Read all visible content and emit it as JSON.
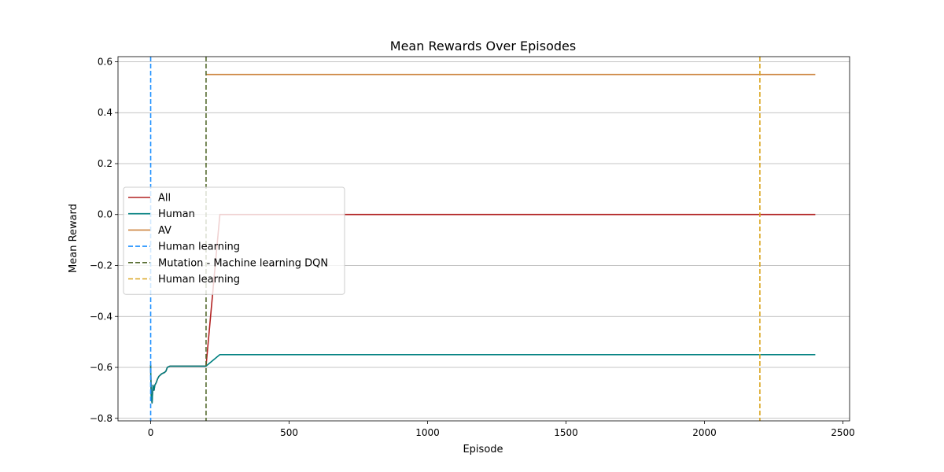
{
  "chart_data": {
    "type": "line",
    "title": "Mean Rewards Over Episodes",
    "xlabel": "Episode",
    "ylabel": "Mean Reward",
    "xlim": [
      -118,
      2524
    ],
    "ylim": [
      -0.81,
      0.62
    ],
    "xticks": [
      0,
      500,
      1000,
      1500,
      2000,
      2500
    ],
    "yticks": [
      -0.8,
      -0.6,
      -0.4,
      -0.2,
      0.0,
      0.2,
      0.4,
      0.6
    ],
    "xtick_labels": [
      "0",
      "500",
      "1000",
      "1500",
      "2000",
      "2500"
    ],
    "ytick_labels": [
      "−0.8",
      "−0.6",
      "−0.4",
      "−0.2",
      "0.0",
      "0.2",
      "0.4",
      "0.6"
    ],
    "grid": "y",
    "legend_position": "center-left",
    "series": [
      {
        "name": "All",
        "color": "#b22222",
        "style": "solid",
        "points": [
          [
            0,
            -0.59
          ],
          [
            2,
            -0.71
          ],
          [
            5,
            -0.74
          ],
          [
            8,
            -0.67
          ],
          [
            12,
            -0.69
          ],
          [
            15,
            -0.67
          ],
          [
            20,
            -0.66
          ],
          [
            25,
            -0.645
          ],
          [
            30,
            -0.635
          ],
          [
            40,
            -0.625
          ],
          [
            50,
            -0.62
          ],
          [
            55,
            -0.615
          ],
          [
            60,
            -0.6
          ],
          [
            70,
            -0.595
          ],
          [
            100,
            -0.595
          ],
          [
            150,
            -0.595
          ],
          [
            200,
            -0.595
          ],
          [
            250,
            0.0
          ],
          [
            2400,
            0.0
          ]
        ]
      },
      {
        "name": "Human",
        "color": "#008080",
        "style": "solid",
        "points": [
          [
            0,
            -0.59
          ],
          [
            2,
            -0.71
          ],
          [
            5,
            -0.74
          ],
          [
            8,
            -0.67
          ],
          [
            12,
            -0.69
          ],
          [
            15,
            -0.67
          ],
          [
            20,
            -0.66
          ],
          [
            25,
            -0.645
          ],
          [
            30,
            -0.635
          ],
          [
            40,
            -0.625
          ],
          [
            50,
            -0.62
          ],
          [
            55,
            -0.615
          ],
          [
            60,
            -0.6
          ],
          [
            70,
            -0.595
          ],
          [
            100,
            -0.595
          ],
          [
            150,
            -0.595
          ],
          [
            200,
            -0.595
          ],
          [
            250,
            -0.55
          ],
          [
            2400,
            -0.55
          ]
        ]
      },
      {
        "name": "AV",
        "color": "#cd853f",
        "style": "solid",
        "points": [
          [
            200,
            0.55
          ],
          [
            2400,
            0.55
          ]
        ]
      }
    ],
    "vlines": [
      {
        "name": "Human learning",
        "x": 0,
        "color": "#1e90ff",
        "style": "dashed"
      },
      {
        "name": "Mutation - Machine learning DQN",
        "x": 200,
        "color": "#556b2f",
        "style": "dashed"
      },
      {
        "name": "Human learning",
        "x": 2200,
        "color": "#daa520",
        "style": "dashed"
      }
    ]
  }
}
